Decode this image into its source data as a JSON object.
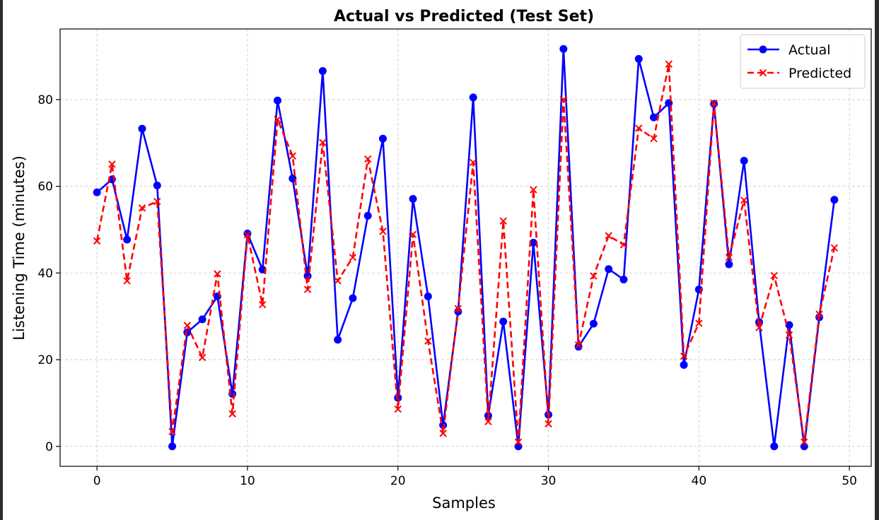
{
  "chart_data": {
    "type": "line",
    "title": "Actual vs Predicted (Test Set)",
    "xlabel": "Samples",
    "ylabel": "Listening Time (minutes)",
    "xlim": [
      -2.45,
      51.45
    ],
    "ylim": [
      -4.6,
      96.3
    ],
    "xticks": [
      0,
      10,
      20,
      30,
      40,
      50
    ],
    "yticks": [
      0,
      20,
      40,
      60,
      80
    ],
    "grid": true,
    "legend_position": "top-right",
    "x": [
      0,
      1,
      2,
      3,
      4,
      5,
      6,
      7,
      8,
      9,
      10,
      11,
      12,
      13,
      14,
      15,
      16,
      17,
      18,
      19,
      20,
      21,
      22,
      23,
      24,
      25,
      26,
      27,
      28,
      29,
      30,
      31,
      32,
      33,
      34,
      35,
      36,
      37,
      38,
      39,
      40,
      41,
      42,
      43,
      44,
      45,
      46,
      47,
      48,
      49
    ],
    "series": [
      {
        "name": "Actual",
        "color": "#0000ff",
        "style": "solid",
        "marker": "circle",
        "values": [
          58.6,
          61.6,
          47.7,
          73.3,
          60.2,
          0,
          26.3,
          29.3,
          34.6,
          12.1,
          49.1,
          40.8,
          79.8,
          61.8,
          39.3,
          86.6,
          24.6,
          34.2,
          53.2,
          71.0,
          11.2,
          57.1,
          34.6,
          4.9,
          31.1,
          80.5,
          7.1,
          28.8,
          0,
          47.0,
          7.3,
          91.7,
          23.0,
          28.3,
          40.9,
          38.5,
          89.4,
          75.9,
          79.2,
          18.8,
          36.2,
          79.0,
          42.0,
          65.9,
          28.7,
          0,
          28.0,
          0,
          29.8,
          56.9
        ]
      },
      {
        "name": "Predicted",
        "color": "#ff0000",
        "style": "dashed",
        "marker": "x",
        "values": [
          47.4,
          65.1,
          38.2,
          55.0,
          56.5,
          3.4,
          27.9,
          20.5,
          39.8,
          7.5,
          48.8,
          32.7,
          75.4,
          67.0,
          36.2,
          70.1,
          38.2,
          43.6,
          66.3,
          49.6,
          8.6,
          48.9,
          24.3,
          3.0,
          31.8,
          65.5,
          5.7,
          52.0,
          1.0,
          59.2,
          5.2,
          80.0,
          23.4,
          39.3,
          48.6,
          46.5,
          73.4,
          71.0,
          88.2,
          20.8,
          28.4,
          79.2,
          43.6,
          56.8,
          27.4,
          39.4,
          25.7,
          1.0,
          30.5,
          45.8
        ]
      }
    ]
  }
}
